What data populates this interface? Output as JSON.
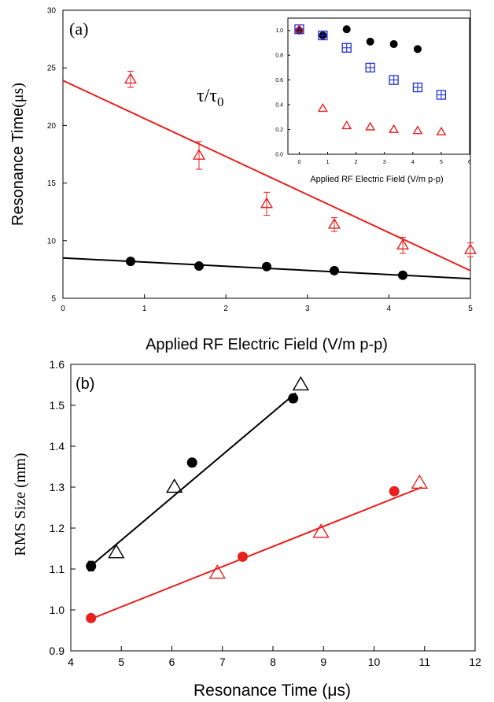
{
  "chart_data": [
    {
      "type": "scatter",
      "panel_label": "(a)",
      "xlabel": "Applied RF Electric Field (V/m p-p)",
      "ylabel": "Resonance Time",
      "ylabel_unit": "(μs)",
      "xlim": [
        0,
        5
      ],
      "ylim": [
        5,
        30
      ],
      "xticks": [
        "0",
        "1",
        "2",
        "3",
        "4",
        "5"
      ],
      "yticks": [
        "5",
        "10",
        "15",
        "20",
        "25",
        "30"
      ],
      "grid": false,
      "colors": {
        "red": "#e8211f",
        "black": "#000000"
      },
      "series": [
        {
          "marker": "open-triangle",
          "color": "#e8211f",
          "points": [
            {
              "x": 0.83,
              "y": 24.0,
              "err": 0.7
            },
            {
              "x": 1.67,
              "y": 17.4,
              "err": 1.2
            },
            {
              "x": 2.5,
              "y": 13.2,
              "err": 1.0
            },
            {
              "x": 3.33,
              "y": 11.4,
              "err": 0.6
            },
            {
              "x": 4.17,
              "y": 9.6,
              "err": 0.7
            },
            {
              "x": 5.0,
              "y": 9.2,
              "err": 0.6
            }
          ]
        },
        {
          "marker": "filled-circle",
          "color": "#000000",
          "points": [
            {
              "x": 0.83,
              "y": 8.2
            },
            {
              "x": 1.67,
              "y": 7.8
            },
            {
              "x": 2.5,
              "y": 7.75
            },
            {
              "x": 3.33,
              "y": 7.4
            },
            {
              "x": 4.17,
              "y": 7.0
            }
          ]
        }
      ],
      "fit_lines": [
        {
          "color": "#e8211f",
          "x": [
            0,
            5
          ],
          "y": [
            23.9,
            7.4
          ]
        },
        {
          "color": "#000000",
          "x": [
            0,
            5
          ],
          "y": [
            8.5,
            6.7
          ]
        }
      ]
    },
    {
      "type": "scatter",
      "role": "inset",
      "ylabel": "τ/τ",
      "ylabel_sub": "0",
      "xlabel": "Applied RF Electric Field (V/m p-p)",
      "xlim": [
        -0.4,
        6
      ],
      "ylim": [
        0,
        1.1
      ],
      "xticks": [
        "0",
        "1",
        "2",
        "3",
        "4",
        "5",
        "6"
      ],
      "yticks": [
        "0.0",
        "0.2",
        "0.4",
        "0.6",
        "0.8",
        "1.0"
      ],
      "series": [
        {
          "marker": "filled-circle",
          "color": "#000000",
          "points": [
            {
              "x": 0,
              "y": 1.0
            },
            {
              "x": 0.83,
              "y": 0.96
            },
            {
              "x": 1.67,
              "y": 1.01
            },
            {
              "x": 2.5,
              "y": 0.91
            },
            {
              "x": 3.33,
              "y": 0.89
            },
            {
              "x": 4.17,
              "y": 0.85
            }
          ]
        },
        {
          "marker": "open-square-cross",
          "color": "#1f2fd6",
          "points": [
            {
              "x": 0,
              "y": 1.01
            },
            {
              "x": 0.83,
              "y": 0.96
            },
            {
              "x": 1.67,
              "y": 0.86
            },
            {
              "x": 2.5,
              "y": 0.7
            },
            {
              "x": 3.33,
              "y": 0.6
            },
            {
              "x": 4.17,
              "y": 0.54
            },
            {
              "x": 5.0,
              "y": 0.48
            }
          ]
        },
        {
          "marker": "open-triangle",
          "color": "#e8211f",
          "points": [
            {
              "x": 0,
              "y": 1.01
            },
            {
              "x": 0.83,
              "y": 0.37
            },
            {
              "x": 1.67,
              "y": 0.23
            },
            {
              "x": 2.5,
              "y": 0.22
            },
            {
              "x": 3.33,
              "y": 0.2
            },
            {
              "x": 4.17,
              "y": 0.19
            },
            {
              "x": 5.0,
              "y": 0.18
            }
          ]
        }
      ]
    },
    {
      "type": "scatter",
      "panel_label": "(b)",
      "xlabel": "Resonance Time (μs)",
      "ylabel": "RMS Size (mm)",
      "xlim": [
        4,
        12
      ],
      "ylim": [
        0.9,
        1.6
      ],
      "xticks": [
        "4",
        "5",
        "6",
        "7",
        "8",
        "9",
        "10",
        "11",
        "12"
      ],
      "yticks": [
        "0.9",
        "1.0",
        "1.1",
        "1.2",
        "1.3",
        "1.4",
        "1.5",
        "1.6"
      ],
      "grid": false,
      "series": [
        {
          "marker": "filled-circle",
          "color": "#000000",
          "points": [
            {
              "x": 4.4,
              "y": 1.107,
              "err": 0.012
            },
            {
              "x": 6.4,
              "y": 1.36,
              "err": 0.01
            },
            {
              "x": 8.4,
              "y": 1.517,
              "err": 0.01
            }
          ]
        },
        {
          "marker": "open-triangle",
          "color": "#000000",
          "points": [
            {
              "x": 4.9,
              "y": 1.14
            },
            {
              "x": 6.05,
              "y": 1.3
            },
            {
              "x": 8.55,
              "y": 1.55
            }
          ]
        },
        {
          "marker": "filled-circle",
          "color": "#e8211f",
          "points": [
            {
              "x": 4.4,
              "y": 0.98
            },
            {
              "x": 7.4,
              "y": 1.13
            },
            {
              "x": 10.4,
              "y": 1.29
            }
          ]
        },
        {
          "marker": "open-triangle",
          "color": "#e8211f",
          "points": [
            {
              "x": 6.9,
              "y": 1.09
            },
            {
              "x": 8.95,
              "y": 1.19
            },
            {
              "x": 10.9,
              "y": 1.31
            }
          ]
        }
      ],
      "fit_lines": [
        {
          "color": "#000000",
          "x": [
            4.4,
            8.45
          ],
          "y": [
            1.108,
            1.53
          ]
        },
        {
          "color": "#e8211f",
          "x": [
            4.4,
            10.95
          ],
          "y": [
            0.978,
            1.3
          ]
        }
      ]
    }
  ]
}
